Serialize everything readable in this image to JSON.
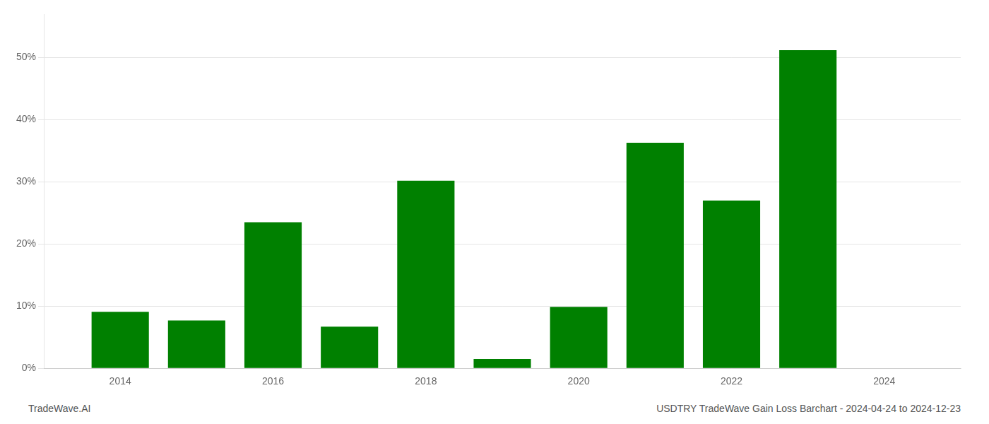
{
  "chart_data": {
    "type": "bar",
    "x": [
      2014,
      2015,
      2016,
      2017,
      2018,
      2019,
      2020,
      2021,
      2022,
      2023,
      2024
    ],
    "values": [
      9.1,
      7.7,
      23.5,
      6.7,
      30.2,
      1.5,
      9.9,
      36.3,
      27.0,
      51.2,
      0.0
    ],
    "color": "#008000",
    "xlim": [
      2013.0,
      2025.0
    ],
    "xticks": [
      2014,
      2016,
      2018,
      2020,
      2022,
      2024
    ],
    "ylim": [
      0,
      57
    ],
    "yticks": [
      {
        "value": 0,
        "label": "0%"
      },
      {
        "value": 10,
        "label": "10%"
      },
      {
        "value": 20,
        "label": "20%"
      },
      {
        "value": 30,
        "label": "30%"
      },
      {
        "value": 40,
        "label": "40%"
      },
      {
        "value": 50,
        "label": "50%"
      }
    ],
    "grid": "y",
    "annotations": [
      "TradeWave.AI",
      "USDTRY TradeWave Gain Loss Barchart - 2024-04-24 to 2024-12-23"
    ]
  }
}
